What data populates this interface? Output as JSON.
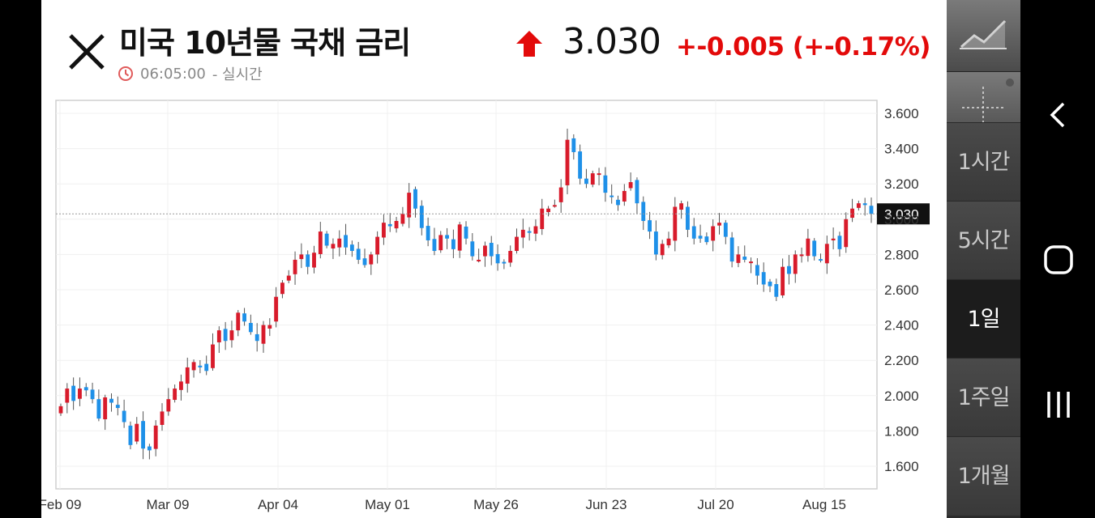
{
  "header": {
    "title": "미국 10년물 국채 금리",
    "time": "06:05:00",
    "time_suffix": "- 실시간",
    "price": "3.030",
    "change": "+-0.005",
    "change_pct": "(+-0.17%)",
    "up_color": "#e30a0a"
  },
  "sidebar": {
    "tools": [
      "line-chart-icon",
      "crosshair-icon"
    ],
    "periods": [
      {
        "label": "1시간",
        "active": false
      },
      {
        "label": "5시간",
        "active": false
      },
      {
        "label": "1일",
        "active": true
      },
      {
        "label": "1주일",
        "active": false
      },
      {
        "label": "1개월",
        "active": false
      }
    ]
  },
  "nav": [
    "back-icon",
    "home-icon",
    "recents-icon"
  ],
  "chart_data": {
    "type": "candlestick",
    "ylim": [
      1.5,
      3.6
    ],
    "yticks": [
      "3.600",
      "3.400",
      "3.200",
      "3.000",
      "2.800",
      "2.600",
      "2.400",
      "2.200",
      "2.000",
      "1.800",
      "1.600"
    ],
    "xtick_labels": [
      "Feb 09",
      "Mar 09",
      "Apr 04",
      "May 01",
      "May 26",
      "Jun 23",
      "Jul 20",
      "Aug 15"
    ],
    "current_value": "3.030",
    "up_color": "#d81b2b",
    "down_color": "#1e90e8",
    "closes": [
      1.94,
      2.04,
      1.97,
      2.04,
      2.03,
      1.98,
      1.87,
      1.99,
      1.96,
      1.93,
      1.85,
      1.72,
      1.84,
      1.7,
      1.69,
      1.83,
      1.91,
      1.98,
      2.04,
      2.08,
      2.16,
      2.19,
      2.16,
      2.14,
      2.29,
      2.37,
      2.31,
      2.37,
      2.47,
      2.42,
      2.36,
      2.31,
      2.4,
      2.4,
      2.56,
      2.64,
      2.68,
      2.77,
      2.8,
      2.73,
      2.81,
      2.93,
      2.85,
      2.86,
      2.89,
      2.84,
      2.82,
      2.77,
      2.74,
      2.8,
      2.9,
      2.98,
      2.96,
      2.99,
      3.03,
      3.15,
      3.06,
      2.95,
      2.88,
      2.82,
      2.91,
      2.89,
      2.83,
      2.97,
      2.89,
      2.79,
      2.77,
      2.85,
      2.79,
      2.75,
      2.75,
      2.82,
      2.9,
      2.94,
      2.93,
      2.96,
      3.06,
      3.06,
      3.08,
      3.18,
      3.45,
      3.38,
      3.23,
      3.2,
      3.26,
      3.26,
      3.15,
      3.13,
      3.08,
      3.16,
      3.21,
      3.09,
      2.99,
      2.93,
      2.8,
      2.86,
      2.89,
      3.07,
      3.09,
      2.94,
      2.89,
      2.89,
      2.87,
      2.96,
      2.98,
      2.9,
      2.76,
      2.8,
      2.77,
      2.76,
      2.68,
      2.63,
      2.62,
      2.56,
      2.73,
      2.69,
      2.8,
      2.8,
      2.89,
      2.79,
      2.77,
      2.86,
      2.89,
      2.83,
      3.0,
      3.06,
      3.09,
      3.08,
      3.03
    ]
  }
}
